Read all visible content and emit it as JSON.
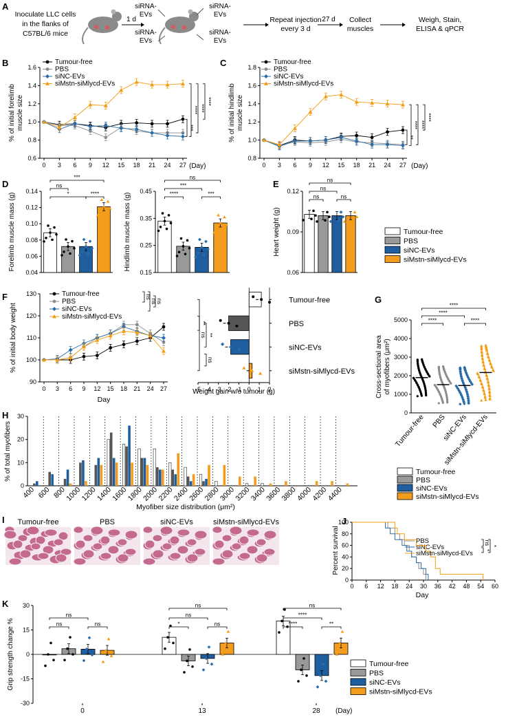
{
  "figure": {
    "panel_letters": [
      "A",
      "B",
      "C",
      "D",
      "E",
      "F",
      "G",
      "H",
      "I",
      "J",
      "K"
    ],
    "schematic": {
      "step1": [
        "Inoculate LLC cells",
        "in the flanks of",
        "C57BL/6 mice"
      ],
      "arrow1": "1 d",
      "inj_labels": [
        "siRNA-",
        "EVs",
        "siRNA-",
        "EVs",
        "siRNA-",
        "EVs",
        "siRNA-",
        "EVs"
      ],
      "step2": [
        "Repeat injection",
        "every 3 d"
      ],
      "arrow2": "27 d",
      "step3": [
        "Collect",
        "muscles"
      ],
      "step4": [
        "Weigh, Stain,",
        "ELISA & qPCR"
      ]
    },
    "histology": [
      "Tumour-free",
      "PBS",
      "siNC-EVs",
      "siMstn-siMlycd-EVs"
    ]
  },
  "colors": {
    "tumour_free": "#000000",
    "pbs": "#8c8c8c",
    "sinc": "#2a6ca8",
    "simstn": "#f39c12",
    "bar_tf": "#ffffff",
    "bar_pbs": "#999999",
    "bar_sinc": "#1f5f9f",
    "bar_simstn": "#f39c1e",
    "bar_pbs_dark": "#555555"
  },
  "chart_data": [
    {
      "id": "B",
      "type": "line",
      "title": "",
      "ylabel": [
        "% of initial forelimb",
        "muscle size"
      ],
      "xlabel": "(Day)",
      "x": [
        0,
        3,
        6,
        9,
        12,
        15,
        18,
        21,
        24,
        27
      ],
      "ylim": [
        0.6,
        1.6
      ],
      "yticks": [
        "0.6",
        "0.8",
        "1.0",
        "1.2",
        "1.4",
        "1.6"
      ],
      "series": [
        {
          "name": "Tumour-free",
          "values": [
            1.0,
            0.97,
            0.98,
            0.96,
            0.94,
            0.98,
            0.99,
            0.98,
            0.98,
            1.03
          ]
        },
        {
          "name": "PBS",
          "values": [
            1.0,
            0.96,
            0.96,
            0.9,
            0.83,
            0.94,
            0.9,
            0.88,
            0.88,
            0.88
          ]
        },
        {
          "name": "siNC-EVs",
          "values": [
            1.0,
            0.92,
            0.98,
            0.95,
            0.96,
            0.93,
            0.92,
            0.88,
            0.85,
            0.84
          ]
        },
        {
          "name": "siMstn-siMlycd-EVs",
          "values": [
            1.0,
            0.94,
            1.05,
            1.19,
            1.18,
            1.35,
            1.44,
            1.41,
            1.41,
            1.42
          ]
        }
      ],
      "significance": [
        "****",
        "****",
        "****",
        "***"
      ]
    },
    {
      "id": "C",
      "type": "line",
      "title": "",
      "ylabel": [
        "% of initial hindlimb",
        "muscle size"
      ],
      "xlabel": "(Day)",
      "x": [
        0,
        3,
        6,
        9,
        12,
        15,
        18,
        21,
        24,
        27
      ],
      "ylim": [
        0.8,
        1.8
      ],
      "yticks": [
        "0.8",
        "1.0",
        "1.2",
        "1.4",
        "1.6",
        "1.8"
      ],
      "series": [
        {
          "name": "Tumour-free",
          "values": [
            1.0,
            0.94,
            1.0,
            0.99,
            1.0,
            1.04,
            1.05,
            1.03,
            1.09,
            1.11
          ]
        },
        {
          "name": "PBS",
          "values": [
            1.0,
            0.94,
            0.98,
            0.97,
            0.98,
            1.01,
            0.98,
            0.97,
            0.96,
            0.95
          ]
        },
        {
          "name": "siNC-EVs",
          "values": [
            1.0,
            0.93,
            0.99,
            0.99,
            1.0,
            1.03,
            0.99,
            0.95,
            0.95,
            0.94
          ]
        },
        {
          "name": "siMstn-siMlycd-EVs",
          "values": [
            1.0,
            0.95,
            1.13,
            1.31,
            1.48,
            1.5,
            1.42,
            1.41,
            1.4,
            1.39
          ]
        }
      ],
      "significance": [
        "****",
        "****",
        "****",
        "**"
      ]
    },
    {
      "id": "D1",
      "type": "bar",
      "ylabel": "Forelimb muscle mass (g)",
      "categories": [
        "Tumour-free",
        "PBS",
        "siNC-EVs",
        "siMstn-siMlycd-EVs"
      ],
      "values": [
        0.089,
        0.072,
        0.072,
        0.121
      ],
      "ylim": [
        0.04,
        0.14
      ],
      "yticks": [
        "0.04",
        "0.06",
        "0.08",
        "0.10",
        "0.12",
        "0.14"
      ],
      "significance": [
        {
          "label": "***",
          "pair": [
            0,
            3
          ]
        },
        {
          "label": "ns",
          "pair": [
            0,
            1
          ]
        },
        {
          "label": "*",
          "pair": [
            0,
            2
          ]
        },
        {
          "label": "****",
          "pair": [
            2,
            3
          ]
        }
      ]
    },
    {
      "id": "D2",
      "type": "bar",
      "ylabel": "Hindlimb muscle mass (g)",
      "categories": [
        "Tumour-free",
        "PBS",
        "siNC-EVs",
        "siMstn-siMlycd-EVs"
      ],
      "values": [
        0.34,
        0.247,
        0.243,
        0.333
      ],
      "ylim": [
        0.15,
        0.45
      ],
      "yticks": [
        "0.15",
        "0.25",
        "0.35",
        "0.45"
      ],
      "significance": [
        {
          "label": "ns",
          "pair": [
            0,
            3
          ]
        },
        {
          "label": "***",
          "pair": [
            0,
            2
          ]
        },
        {
          "label": "****",
          "pair": [
            0,
            1
          ]
        },
        {
          "label": "***",
          "pair": [
            2,
            3
          ]
        }
      ]
    },
    {
      "id": "E",
      "type": "bar",
      "ylabel": "Heart weight (g)",
      "categories": [
        "Tumour-free",
        "PBS",
        "siNC-EVs",
        "siMstn-siMlycd-EVs"
      ],
      "values": [
        0.103,
        0.102,
        0.102,
        0.102
      ],
      "ylim": [
        0.06,
        0.12
      ],
      "yticks": [
        "0.06",
        "0.09",
        "0.12"
      ],
      "significance": [
        {
          "label": "ns",
          "pair": [
            0,
            3
          ]
        },
        {
          "label": "ns",
          "pair": [
            0,
            2
          ]
        },
        {
          "label": "ns",
          "pair": [
            0,
            1
          ]
        },
        {
          "label": "ns",
          "pair": [
            2,
            3
          ]
        }
      ],
      "legend": [
        "Tumour-free",
        "PBS",
        "siNC-EVs",
        "siMstn-siMlycd-EVs"
      ]
    },
    {
      "id": "F1",
      "type": "line",
      "ylabel": "% of initial body weight",
      "xlabel": "Day",
      "x": [
        0,
        3,
        6,
        9,
        12,
        15,
        18,
        21,
        24,
        27
      ],
      "ylim": [
        90,
        130
      ],
      "yticks": [
        "90",
        "100",
        "110",
        "120",
        "130"
      ],
      "series": [
        {
          "name": "Tumour-free",
          "values": [
            100,
            100,
            100,
            101.5,
            102,
            105.5,
            107,
            108.5,
            110,
            115
          ]
        },
        {
          "name": "PBS",
          "values": [
            100,
            100,
            101,
            106,
            110,
            112,
            116,
            116,
            112,
            108
          ]
        },
        {
          "name": "siNC-EVs",
          "values": [
            100,
            100.5,
            104.5,
            107.5,
            110,
            112,
            115,
            113,
            111,
            110
          ]
        },
        {
          "name": "siMstn-siMlycd-EVs",
          "values": [
            100,
            100,
            101,
            106,
            109,
            111,
            113,
            112.5,
            111,
            104
          ]
        }
      ],
      "significance": [
        "ns",
        "ns",
        "ns"
      ]
    },
    {
      "id": "F2",
      "type": "bar",
      "orientation": "horizontal",
      "xlabel": "Weight gain w/o tumour (g)",
      "categories": [
        "Tumour-free",
        "PBS",
        "siNC-EVs",
        "siMstn-siMlycd-EVs"
      ],
      "values": [
        1.2,
        -2.0,
        -1.8,
        0.3
      ],
      "xlim": [
        -5,
        2
      ],
      "xticks": [
        "-5",
        "-4",
        "-3",
        "-2",
        "-1",
        "0",
        "1",
        "2"
      ],
      "significance": [
        "ns",
        "**",
        "**",
        "ns"
      ]
    },
    {
      "id": "G",
      "type": "scatter",
      "ylabel": [
        "Cross-sectional area",
        "of myofibers (μm²)"
      ],
      "categories": [
        "Tumour-free",
        "PBS",
        "siNC-EVs",
        "siMstn-siMlycd-EVs"
      ],
      "values": [
        1900,
        1520,
        1470,
        2170
      ],
      "ylim": [
        0,
        5000
      ],
      "yticks": [
        "0",
        "1000",
        "2000",
        "3000",
        "4000",
        "5000"
      ],
      "significance": [
        "****",
        "****",
        "****",
        "****"
      ]
    },
    {
      "id": "H",
      "type": "bar",
      "ylabel": "% of total myofibers",
      "xlabel": "Myofiber size distribution (μm²)",
      "categories": [
        "400",
        "600",
        "800",
        "1000",
        "1200",
        "1400",
        "1600",
        "1800",
        "2000",
        "2200",
        "2400",
        "2600",
        "2800",
        "3000",
        "3200",
        "3400",
        "3600",
        "3800",
        "4000",
        "4200",
        "4400"
      ],
      "ylim": [
        0,
        30
      ],
      "yticks": [
        "0",
        "10",
        "20",
        "30"
      ],
      "series": [
        {
          "name": "Tumour-free",
          "values": [
            0,
            0,
            0,
            0,
            0,
            20,
            18,
            16,
            16,
            10,
            8,
            5,
            2,
            0,
            1,
            1,
            0,
            0,
            0,
            0,
            0
          ]
        },
        {
          "name": "PBS",
          "values": [
            1,
            6,
            3,
            10,
            9,
            23,
            17,
            12,
            8,
            7,
            4,
            2,
            0,
            0,
            0,
            0,
            0,
            0,
            0,
            0,
            0
          ]
        },
        {
          "name": "siNC-EVs",
          "values": [
            2,
            5,
            7,
            11,
            12,
            12,
            26,
            12,
            7,
            5,
            2,
            3,
            0,
            0,
            0,
            0,
            0,
            0,
            0,
            0,
            0
          ]
        },
        {
          "name": "siMstn-siMlycd-EVs",
          "values": [
            0,
            0,
            1,
            2,
            9,
            10,
            10,
            9,
            7,
            14,
            5,
            9,
            9,
            4,
            4,
            1,
            2,
            0,
            2,
            2,
            1
          ]
        }
      ],
      "legend": [
        "Tumour-free",
        "PBS",
        "siNC-EVs",
        "siMstn-siMlycd-EVs"
      ]
    },
    {
      "id": "J",
      "type": "line",
      "ylabel": "Percent survival",
      "xlabel": "Day",
      "xticks": [
        "0",
        "6",
        "12",
        "18",
        "24",
        "30",
        "36",
        "42",
        "48",
        "54",
        "60"
      ],
      "ylim": [
        0,
        100
      ],
      "yticks": [
        "0",
        "20",
        "40",
        "60",
        "80",
        "100"
      ],
      "series": [
        {
          "name": "PBS",
          "values": [
            [
              0,
              100
            ],
            [
              14,
              100
            ],
            [
              15,
              90
            ],
            [
              18,
              80
            ],
            [
              20,
              70
            ],
            [
              22,
              60
            ],
            [
              24,
              50
            ],
            [
              25,
              40
            ],
            [
              27,
              30
            ],
            [
              28,
              20
            ],
            [
              30,
              10
            ],
            [
              31,
              0
            ]
          ]
        },
        {
          "name": "siNC-EVs",
          "values": [
            [
              0,
              100
            ],
            [
              13,
              100
            ],
            [
              14,
              90
            ],
            [
              16,
              80
            ],
            [
              18,
              70
            ],
            [
              21,
              60
            ],
            [
              23,
              50
            ],
            [
              25,
              40
            ],
            [
              27,
              30
            ],
            [
              29,
              20
            ],
            [
              31,
              10
            ],
            [
              32,
              0
            ]
          ]
        },
        {
          "name": "siMstn-siMlycd-EVs",
          "values": [
            [
              0,
              100
            ],
            [
              17,
              100
            ],
            [
              18,
              90
            ],
            [
              19,
              80
            ],
            [
              22,
              70
            ],
            [
              27,
              60
            ],
            [
              31,
              50
            ],
            [
              33,
              40
            ],
            [
              35,
              20
            ],
            [
              37,
              10
            ],
            [
              53,
              10
            ],
            [
              55,
              0
            ]
          ]
        }
      ],
      "significance": [
        "ns",
        "*",
        "*"
      ]
    },
    {
      "id": "K",
      "type": "bar",
      "ylabel": "Grip strength change %",
      "xlabel": "(Day)",
      "categories": [
        "0",
        "13",
        "28"
      ],
      "ylim": [
        -30,
        30
      ],
      "yticks": [
        "-30",
        "-15",
        "0",
        "15",
        "30"
      ],
      "series": [
        {
          "name": "Tumour-free",
          "values": [
            0,
            10.5,
            20.5
          ]
        },
        {
          "name": "PBS",
          "values": [
            3.5,
            -4,
            -9.5
          ]
        },
        {
          "name": "siNC-EVs",
          "values": [
            3.2,
            -2.5,
            -13
          ]
        },
        {
          "name": "siMstn-siMlycd-EVs",
          "values": [
            2.5,
            7,
            7
          ]
        }
      ],
      "significance": [
        {
          "day": "0",
          "labels": [
            "ns",
            "ns",
            "ns"
          ]
        },
        {
          "day": "13",
          "labels": [
            "ns",
            "*",
            "ns",
            "ns"
          ]
        },
        {
          "day": "28",
          "labels": [
            "ns",
            "****",
            "****",
            "**"
          ]
        }
      ],
      "legend": [
        "Tumour-free",
        "PBS",
        "siNC-EVs",
        "siMstn-siMlycd-EVs"
      ]
    }
  ]
}
